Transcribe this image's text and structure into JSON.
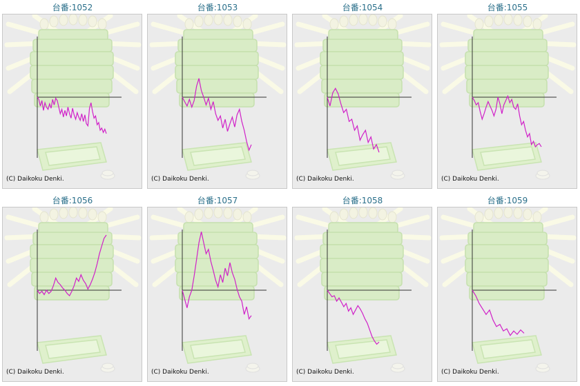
{
  "copyright": "(C) Daikoku Denki.",
  "line_color": "#d020c8",
  "axis_color": "#333333",
  "chart_data": [
    {
      "type": "line",
      "title": "台番:1052",
      "values": [
        0,
        -0.04,
        -0.16,
        -0.06,
        -0.24,
        -0.1,
        -0.18,
        -0.22,
        -0.12,
        -0.2,
        -0.04,
        -0.14,
        -0.02,
        -0.06,
        -0.18,
        -0.3,
        -0.22,
        -0.36,
        -0.24,
        -0.34,
        -0.18,
        -0.3,
        -0.38,
        -0.2,
        -0.32,
        -0.4,
        -0.28,
        -0.36,
        -0.42,
        -0.3,
        -0.44,
        -0.32,
        -0.48,
        -0.52,
        -0.2,
        -0.1,
        -0.26,
        -0.38,
        -0.34,
        -0.5,
        -0.46,
        -0.6,
        -0.56,
        -0.64,
        -0.58,
        -0.66
      ]
    },
    {
      "type": "line",
      "title": "台番:1053",
      "values": [
        0,
        -0.08,
        -0.16,
        -0.04,
        -0.18,
        -0.06,
        0.2,
        0.34,
        0.12,
        0,
        -0.14,
        -0.02,
        -0.22,
        -0.08,
        -0.3,
        -0.42,
        -0.34,
        -0.56,
        -0.4,
        -0.62,
        -0.48,
        -0.36,
        -0.54,
        -0.32,
        -0.22,
        -0.44,
        -0.6,
        -0.8,
        -0.96,
        -0.86
      ]
    },
    {
      "type": "line",
      "title": "台番:1054",
      "values": [
        0,
        -0.16,
        0.08,
        0.16,
        0.06,
        -0.12,
        -0.28,
        -0.22,
        -0.44,
        -0.4,
        -0.6,
        -0.52,
        -0.78,
        -0.68,
        -0.6,
        -0.82,
        -0.72,
        -0.94,
        -0.86,
        -1.0
      ]
    },
    {
      "type": "line",
      "title": "台番:1055",
      "values": [
        0,
        -0.06,
        -0.14,
        -0.1,
        -0.26,
        -0.4,
        -0.3,
        -0.18,
        -0.08,
        -0.16,
        -0.24,
        -0.34,
        -0.22,
        0,
        -0.12,
        -0.3,
        -0.14,
        -0.06,
        0.02,
        -0.1,
        -0.04,
        -0.18,
        -0.22,
        -0.12,
        -0.34,
        -0.5,
        -0.44,
        -0.6,
        -0.72,
        -0.66,
        -0.86,
        -0.8,
        -0.9,
        -0.86,
        -0.84,
        -0.9
      ]
    },
    {
      "type": "line",
      "title": "台番:1056",
      "values": [
        0,
        -0.06,
        -0.02,
        -0.08,
        0,
        -0.06,
        -0.02,
        0.08,
        0.22,
        0.14,
        0.1,
        0.04,
        0,
        -0.06,
        -0.1,
        -0.02,
        0.08,
        0.22,
        0.16,
        0.28,
        0.18,
        0.12,
        0.02,
        0.1,
        0.2,
        0.32,
        0.48,
        0.66,
        0.8,
        0.94,
        1.0
      ]
    },
    {
      "type": "line",
      "title": "台番:1057",
      "values": [
        0,
        -0.16,
        -0.32,
        -0.12,
        0,
        0.26,
        0.56,
        0.86,
        1.06,
        0.86,
        0.66,
        0.74,
        0.52,
        0.36,
        0.18,
        0.06,
        0.28,
        0.14,
        0.4,
        0.26,
        0.5,
        0.32,
        0.2,
        0.02,
        -0.12,
        -0.2,
        -0.44,
        -0.3,
        -0.52,
        -0.46
      ]
    },
    {
      "type": "line",
      "title": "台番:1058",
      "values": [
        0,
        -0.06,
        -0.12,
        -0.1,
        -0.2,
        -0.14,
        -0.22,
        -0.3,
        -0.24,
        -0.38,
        -0.32,
        -0.44,
        -0.36,
        -0.28,
        -0.34,
        -0.42,
        -0.52,
        -0.6,
        -0.72,
        -0.84,
        -0.92,
        -0.98,
        -0.94
      ]
    },
    {
      "type": "line",
      "title": "台番:1059",
      "values": [
        0,
        -0.1,
        -0.24,
        -0.34,
        -0.44,
        -0.36,
        -0.54,
        -0.66,
        -0.62,
        -0.74,
        -0.7,
        -0.82,
        -0.74,
        -0.8,
        -0.72,
        -0.78
      ]
    }
  ]
}
